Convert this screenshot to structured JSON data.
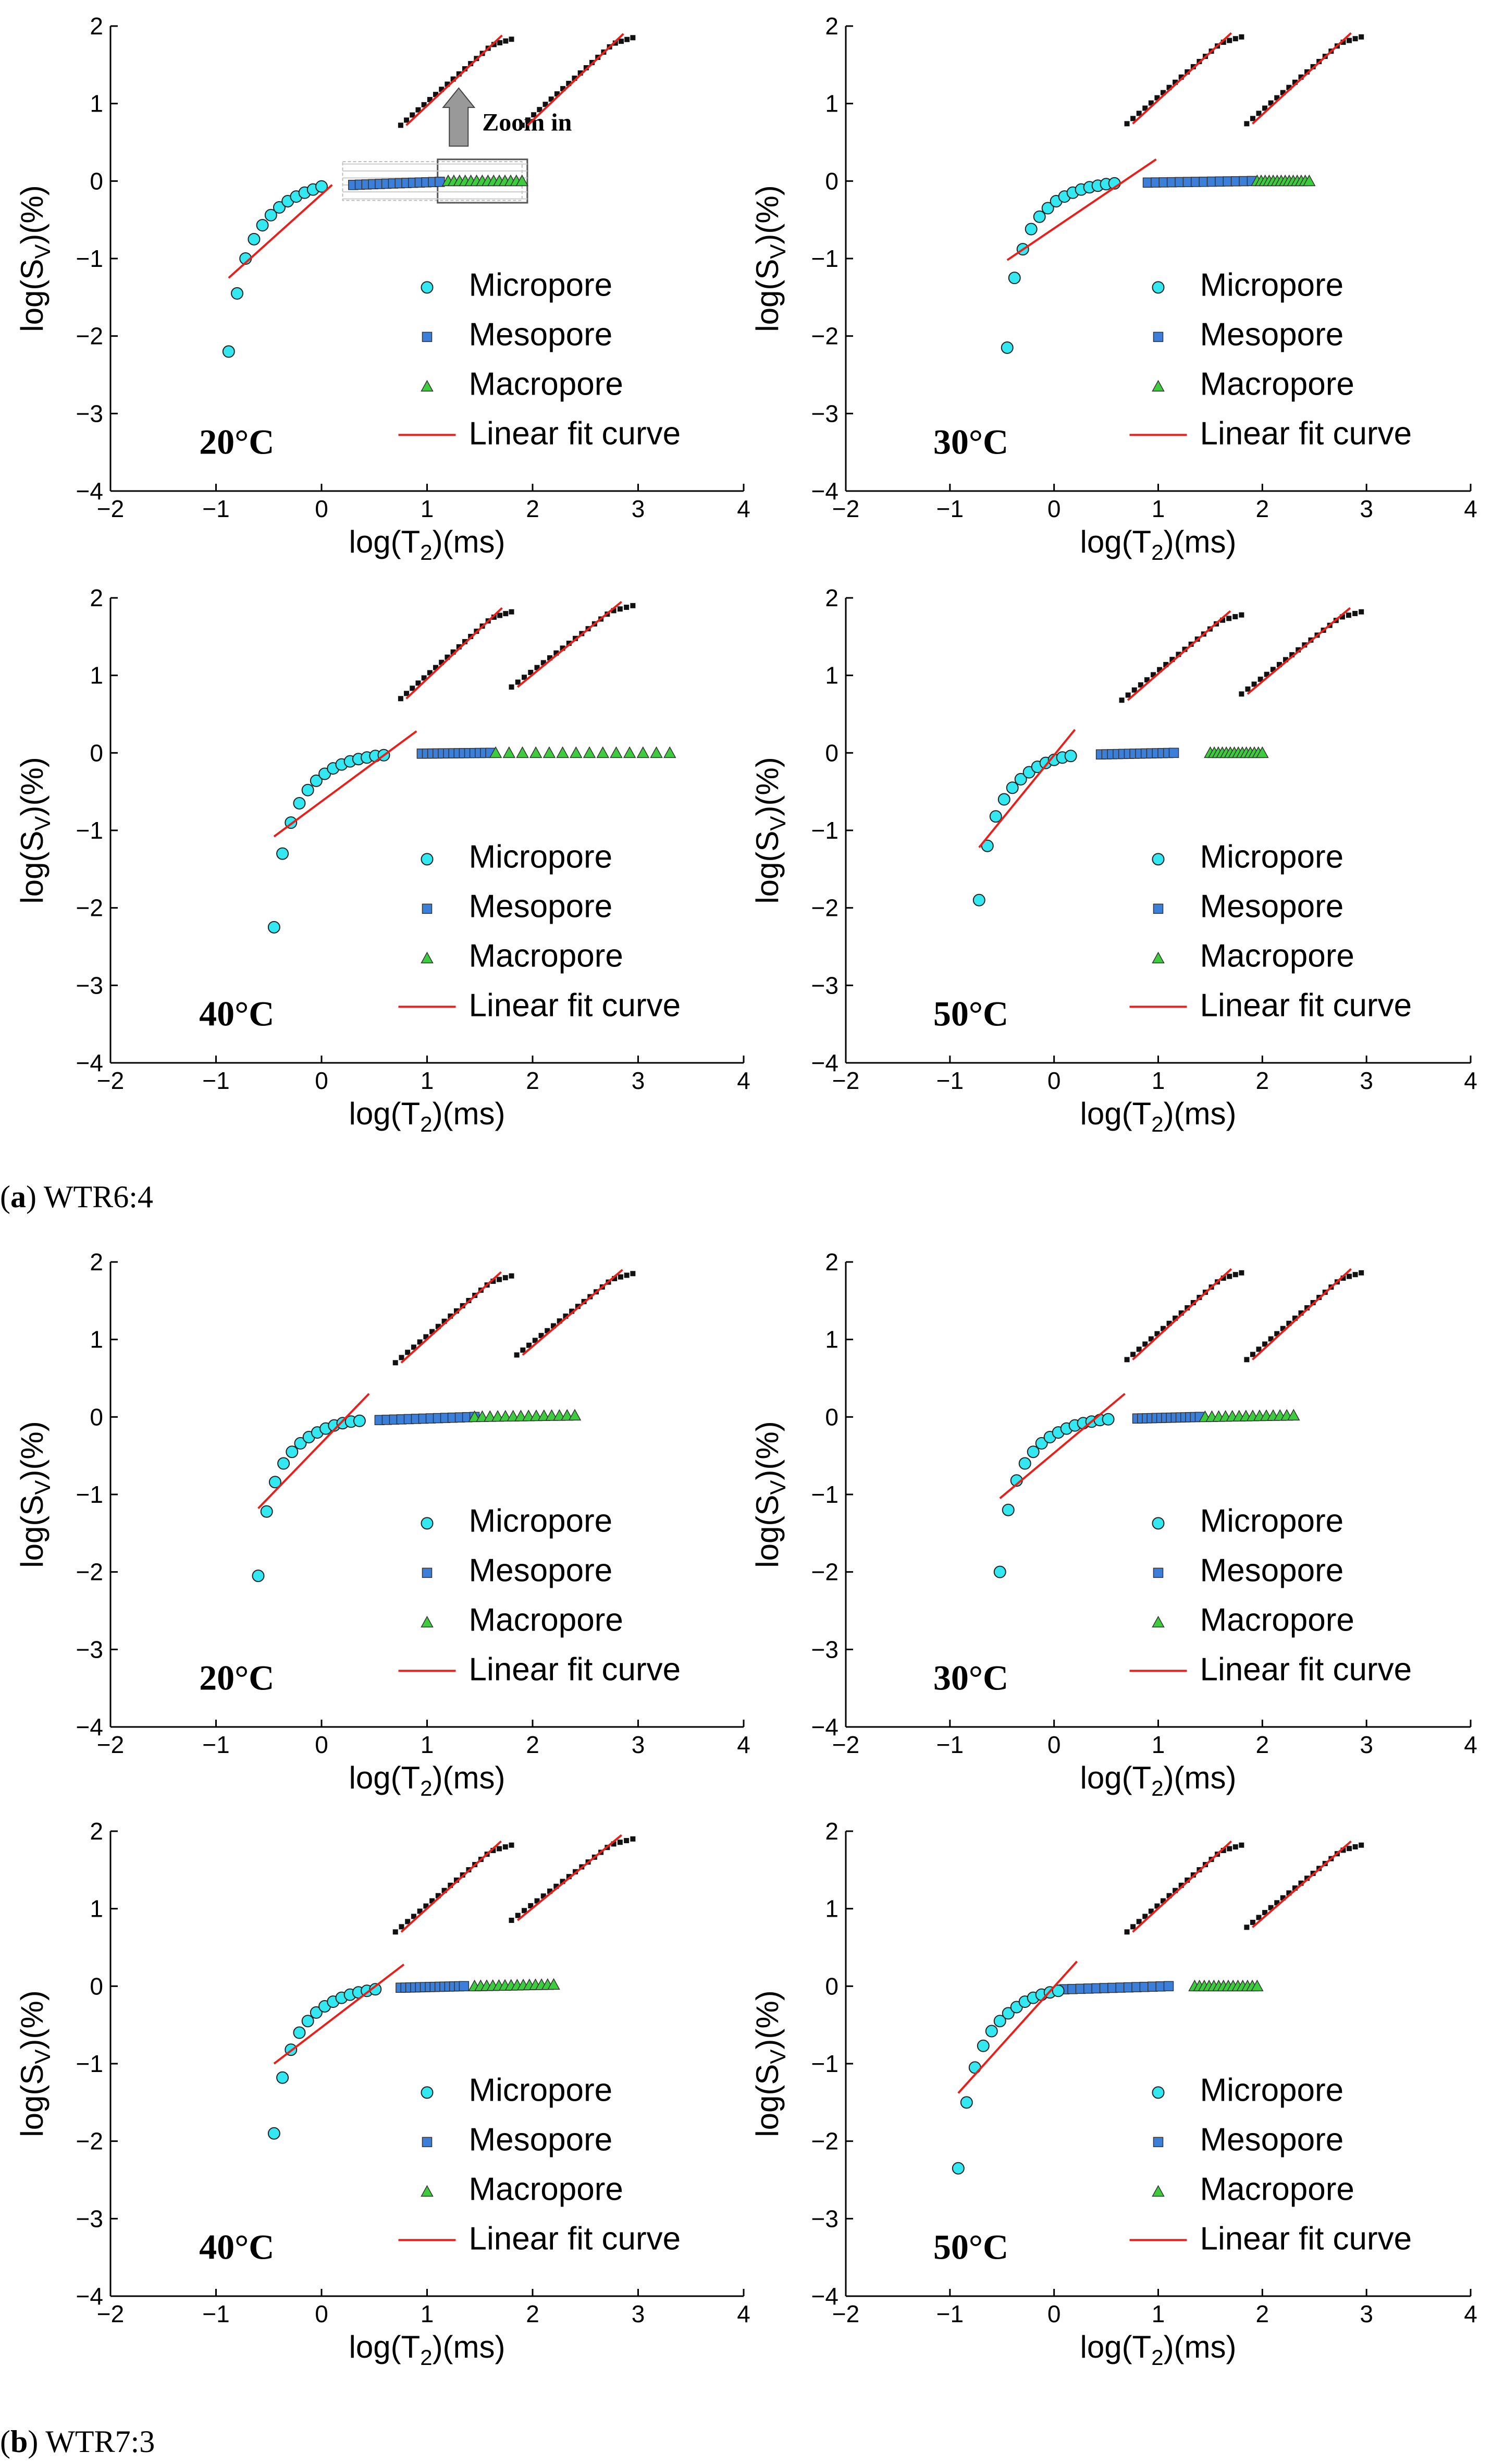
{
  "figure": {
    "caption_a": {
      "letter": "a",
      "text": "WTR6:4"
    },
    "caption_b": {
      "letter": "b",
      "text": "WTR7:3"
    },
    "zoom_label": "Zoom in"
  },
  "colors": {
    "micropore": "#33e8f0",
    "mesopore": "#3b7fd9",
    "macropore": "#3dcc3d",
    "fit": "#e8201c",
    "zoom": "#111111"
  },
  "chart_data": [
    {
      "type": "scatter",
      "group": "a",
      "temperature": "20°C",
      "xlabel": "log(T2)(ms)",
      "ylabel": "log(SV)(%)",
      "xlim": [
        -2,
        4
      ],
      "ylim": [
        -4,
        2
      ],
      "xticks": [
        "−2",
        "−1",
        "0",
        "1",
        "2",
        "3",
        "4"
      ],
      "yticks": [
        "−4",
        "−3",
        "−2",
        "−1",
        "0",
        "1",
        "2"
      ],
      "legend": [
        "Micropore",
        "Mesopore",
        "Macropore",
        "Linear fit curve"
      ],
      "micropore": {
        "x": [
          -0.88,
          -0.8,
          -0.72,
          -0.64,
          -0.56,
          -0.48,
          -0.4,
          -0.32,
          -0.24,
          -0.16,
          -0.08,
          0.0
        ],
        "y": [
          -2.2,
          -1.45,
          -1.0,
          -0.75,
          -0.57,
          -0.44,
          -0.34,
          -0.26,
          -0.2,
          -0.15,
          -0.11,
          -0.07
        ]
      },
      "mesopore": {
        "x": [
          0.3,
          1.12
        ],
        "y": [
          -0.05,
          -0.01
        ]
      },
      "macropore": {
        "x": [
          1.2,
          1.9
        ],
        "y": [
          0.0,
          0.0
        ]
      },
      "fit": {
        "x": [
          -0.88,
          0.1
        ],
        "y": [
          -1.25,
          -0.05
        ]
      },
      "zoom_box": true,
      "zoom_meso": {
        "x": [
          0.75,
          1.8
        ],
        "y": [
          0.72,
          1.83
        ]
      },
      "zoom_macro": {
        "x": [
          1.9,
          2.95
        ],
        "y": [
          0.72,
          1.85
        ]
      }
    },
    {
      "type": "scatter",
      "group": "a",
      "temperature": "30°C",
      "xlabel": "log(T2)(ms)",
      "ylabel": "log(SV)(%)",
      "xlim": [
        -2,
        4
      ],
      "ylim": [
        -4,
        2
      ],
      "xticks": [
        "−2",
        "−1",
        "0",
        "1",
        "2",
        "3",
        "4"
      ],
      "yticks": [
        "−4",
        "−3",
        "−2",
        "−1",
        "0",
        "1",
        "2"
      ],
      "legend": [
        "Micropore",
        "Mesopore",
        "Macropore",
        "Linear fit curve"
      ],
      "micropore": {
        "x": [
          -0.45,
          -0.38,
          -0.3,
          -0.22,
          -0.14,
          -0.06,
          0.02,
          0.1,
          0.18,
          0.26,
          0.34,
          0.42,
          0.5,
          0.58
        ],
        "y": [
          -2.15,
          -1.25,
          -0.88,
          -0.62,
          -0.46,
          -0.35,
          -0.26,
          -0.2,
          -0.15,
          -0.11,
          -0.08,
          -0.06,
          -0.04,
          -0.03
        ]
      },
      "mesopore": {
        "x": [
          0.9,
          1.9
        ],
        "y": [
          -0.02,
          0.0
        ]
      },
      "macropore": {
        "x": [
          1.95,
          2.45
        ],
        "y": [
          0.0,
          0.0
        ]
      },
      "fit": {
        "x": [
          -0.45,
          0.98
        ],
        "y": [
          -1.02,
          0.28
        ]
      },
      "zoom_box": false,
      "zoom_meso": {
        "x": [
          0.7,
          1.8
        ],
        "y": [
          0.74,
          1.86
        ]
      },
      "zoom_macro": {
        "x": [
          1.85,
          2.95
        ],
        "y": [
          0.74,
          1.86
        ]
      }
    },
    {
      "type": "scatter",
      "group": "a",
      "temperature": "40°C",
      "xlabel": "log(T2)(ms)",
      "ylabel": "log(SV)(%)",
      "xlim": [
        -2,
        4
      ],
      "ylim": [
        -4,
        2
      ],
      "xticks": [
        "−2",
        "−1",
        "0",
        "1",
        "2",
        "3",
        "4"
      ],
      "yticks": [
        "−4",
        "−3",
        "−2",
        "−1",
        "0",
        "1",
        "2"
      ],
      "legend": [
        "Micropore",
        "Mesopore",
        "Macropore",
        "Linear fit curve"
      ],
      "micropore": {
        "x": [
          -0.45,
          -0.37,
          -0.29,
          -0.21,
          -0.13,
          -0.05,
          0.03,
          0.11,
          0.19,
          0.27,
          0.35,
          0.43,
          0.51,
          0.59
        ],
        "y": [
          -2.25,
          -1.3,
          -0.9,
          -0.65,
          -0.48,
          -0.36,
          -0.27,
          -0.2,
          -0.15,
          -0.11,
          -0.08,
          -0.06,
          -0.04,
          -0.03
        ]
      },
      "mesopore": {
        "x": [
          0.95,
          1.6
        ],
        "y": [
          -0.01,
          0.0
        ]
      },
      "macropore": {
        "x": [
          1.65,
          3.3
        ],
        "y": [
          0.0,
          0.0
        ]
      },
      "fit": {
        "x": [
          -0.45,
          0.9
        ],
        "y": [
          -1.08,
          0.28
        ]
      },
      "zoom_box": false,
      "zoom_meso": {
        "x": [
          0.75,
          1.8
        ],
        "y": [
          0.7,
          1.82
        ]
      },
      "zoom_macro": {
        "x": [
          1.8,
          2.95
        ],
        "y": [
          0.85,
          1.9
        ]
      }
    },
    {
      "type": "scatter",
      "group": "a",
      "temperature": "50°C",
      "xlabel": "log(T2)(ms)",
      "ylabel": "log(SV)(%)",
      "xlim": [
        -2,
        4
      ],
      "ylim": [
        -4,
        2
      ],
      "xticks": [
        "−2",
        "−1",
        "0",
        "1",
        "2",
        "3",
        "4"
      ],
      "yticks": [
        "−4",
        "−3",
        "−2",
        "−1",
        "0",
        "1",
        "2"
      ],
      "legend": [
        "Micropore",
        "Mesopore",
        "Macropore",
        "Linear fit curve"
      ],
      "micropore": {
        "x": [
          -0.72,
          -0.64,
          -0.56,
          -0.48,
          -0.4,
          -0.32,
          -0.24,
          -0.16,
          -0.08,
          0.0,
          0.08,
          0.16
        ],
        "y": [
          -1.9,
          -1.2,
          -0.82,
          -0.6,
          -0.45,
          -0.34,
          -0.25,
          -0.18,
          -0.13,
          -0.09,
          -0.06,
          -0.04
        ]
      },
      "mesopore": {
        "x": [
          0.45,
          1.15
        ],
        "y": [
          -0.02,
          0.0
        ]
      },
      "macropore": {
        "x": [
          1.5,
          2.0
        ],
        "y": [
          0.0,
          0.0
        ]
      },
      "fit": {
        "x": [
          -0.72,
          0.2
        ],
        "y": [
          -1.22,
          0.3
        ]
      },
      "zoom_box": false,
      "zoom_meso": {
        "x": [
          0.65,
          1.8
        ],
        "y": [
          0.68,
          1.78
        ]
      },
      "zoom_macro": {
        "x": [
          1.8,
          2.95
        ],
        "y": [
          0.76,
          1.82
        ]
      }
    },
    {
      "type": "scatter",
      "group": "b",
      "temperature": "20°C",
      "xlabel": "log(T2)(ms)",
      "ylabel": "log(SV)(%)",
      "xlim": [
        -2,
        4
      ],
      "ylim": [
        -4,
        2
      ],
      "xticks": [
        "−2",
        "−1",
        "0",
        "1",
        "2",
        "3",
        "4"
      ],
      "yticks": [
        "−4",
        "−3",
        "−2",
        "−1",
        "0",
        "1",
        "2"
      ],
      "legend": [
        "Micropore",
        "Mesopore",
        "Macropore",
        "Linear fit curve"
      ],
      "micropore": {
        "x": [
          -0.6,
          -0.52,
          -0.44,
          -0.36,
          -0.28,
          -0.2,
          -0.12,
          -0.04,
          0.04,
          0.12,
          0.2,
          0.28,
          0.36
        ],
        "y": [
          -2.05,
          -1.22,
          -0.84,
          -0.6,
          -0.45,
          -0.34,
          -0.26,
          -0.2,
          -0.15,
          -0.11,
          -0.08,
          -0.06,
          -0.05
        ]
      },
      "mesopore": {
        "x": [
          0.55,
          1.45
        ],
        "y": [
          -0.04,
          0.0
        ]
      },
      "macropore": {
        "x": [
          1.45,
          2.4
        ],
        "y": [
          0.0,
          0.02
        ]
      },
      "fit": {
        "x": [
          -0.6,
          0.45
        ],
        "y": [
          -1.18,
          0.3
        ]
      },
      "zoom_box": false,
      "zoom_meso": {
        "x": [
          0.7,
          1.8
        ],
        "y": [
          0.7,
          1.82
        ]
      },
      "zoom_macro": {
        "x": [
          1.85,
          2.95
        ],
        "y": [
          0.8,
          1.85
        ]
      }
    },
    {
      "type": "scatter",
      "group": "b",
      "temperature": "30°C",
      "xlabel": "log(T2)(ms)",
      "ylabel": "log(SV)(%)",
      "xlim": [
        -2,
        4
      ],
      "ylim": [
        -4,
        2
      ],
      "xticks": [
        "−2",
        "−1",
        "0",
        "1",
        "2",
        "3",
        "4"
      ],
      "yticks": [
        "−4",
        "−3",
        "−2",
        "−1",
        "0",
        "1",
        "2"
      ],
      "legend": [
        "Micropore",
        "Mesopore",
        "Macropore",
        "Linear fit curve"
      ],
      "micropore": {
        "x": [
          -0.52,
          -0.44,
          -0.36,
          -0.28,
          -0.2,
          -0.12,
          -0.04,
          0.04,
          0.12,
          0.2,
          0.28,
          0.36,
          0.44,
          0.52
        ],
        "y": [
          -2.0,
          -1.2,
          -0.82,
          -0.6,
          -0.45,
          -0.34,
          -0.26,
          -0.2,
          -0.15,
          -0.11,
          -0.08,
          -0.06,
          -0.04,
          -0.03
        ]
      },
      "mesopore": {
        "x": [
          0.8,
          1.4
        ],
        "y": [
          -0.02,
          0.0
        ]
      },
      "macropore": {
        "x": [
          1.45,
          2.3
        ],
        "y": [
          0.0,
          0.02
        ]
      },
      "fit": {
        "x": [
          -0.52,
          0.68
        ],
        "y": [
          -1.05,
          0.3
        ]
      },
      "zoom_box": false,
      "zoom_meso": {
        "x": [
          0.7,
          1.8
        ],
        "y": [
          0.74,
          1.86
        ]
      },
      "zoom_macro": {
        "x": [
          1.85,
          2.95
        ],
        "y": [
          0.74,
          1.86
        ]
      }
    },
    {
      "type": "scatter",
      "group": "b",
      "temperature": "40°C",
      "xlabel": "log(T2)(ms)",
      "ylabel": "log(SV)(%)",
      "xlim": [
        -2,
        4
      ],
      "ylim": [
        -4,
        2
      ],
      "xticks": [
        "−2",
        "−1",
        "0",
        "1",
        "2",
        "3",
        "4"
      ],
      "yticks": [
        "−4",
        "−3",
        "−2",
        "−1",
        "0",
        "1",
        "2"
      ],
      "legend": [
        "Micropore",
        "Mesopore",
        "Macropore",
        "Linear fit curve"
      ],
      "micropore": {
        "x": [
          -0.45,
          -0.37,
          -0.29,
          -0.21,
          -0.13,
          -0.05,
          0.03,
          0.11,
          0.19,
          0.27,
          0.35,
          0.43,
          0.51
        ],
        "y": [
          -1.9,
          -1.18,
          -0.82,
          -0.6,
          -0.45,
          -0.34,
          -0.26,
          -0.2,
          -0.15,
          -0.11,
          -0.08,
          -0.06,
          -0.04
        ]
      },
      "mesopore": {
        "x": [
          0.75,
          1.35
        ],
        "y": [
          -0.02,
          0.0
        ]
      },
      "macropore": {
        "x": [
          1.45,
          2.2
        ],
        "y": [
          0.0,
          0.02
        ]
      },
      "fit": {
        "x": [
          -0.45,
          0.78
        ],
        "y": [
          -1.0,
          0.28
        ]
      },
      "zoom_box": false,
      "zoom_meso": {
        "x": [
          0.7,
          1.8
        ],
        "y": [
          0.7,
          1.82
        ]
      },
      "zoom_macro": {
        "x": [
          1.8,
          2.95
        ],
        "y": [
          0.85,
          1.9
        ]
      }
    },
    {
      "type": "scatter",
      "group": "b",
      "temperature": "50°C",
      "xlabel": "log(T2)(ms)",
      "ylabel": "log(SV)(%)",
      "xlim": [
        -2,
        4
      ],
      "ylim": [
        -4,
        2
      ],
      "xticks": [
        "−2",
        "−1",
        "0",
        "1",
        "2",
        "3",
        "4"
      ],
      "yticks": [
        "−4",
        "−3",
        "−2",
        "−1",
        "0",
        "1",
        "2"
      ],
      "legend": [
        "Micropore",
        "Mesopore",
        "Macropore",
        "Linear fit curve"
      ],
      "micropore": {
        "x": [
          -0.92,
          -0.84,
          -0.76,
          -0.68,
          -0.6,
          -0.52,
          -0.44,
          -0.36,
          -0.28,
          -0.2,
          -0.12,
          -0.04,
          0.04
        ],
        "y": [
          -2.35,
          -1.5,
          -1.05,
          -0.77,
          -0.58,
          -0.45,
          -0.35,
          -0.27,
          -0.2,
          -0.15,
          -0.11,
          -0.08,
          -0.06
        ]
      },
      "mesopore": {
        "x": [
          0.1,
          1.1
        ],
        "y": [
          -0.04,
          0.0
        ]
      },
      "macropore": {
        "x": [
          1.35,
          1.95
        ],
        "y": [
          0.0,
          0.0
        ]
      },
      "fit": {
        "x": [
          -0.92,
          0.22
        ],
        "y": [
          -1.38,
          0.32
        ]
      },
      "zoom_box": false,
      "zoom_meso": {
        "x": [
          0.7,
          1.8
        ],
        "y": [
          0.7,
          1.82
        ]
      },
      "zoom_macro": {
        "x": [
          1.85,
          2.95
        ],
        "y": [
          0.76,
          1.82
        ]
      }
    }
  ]
}
